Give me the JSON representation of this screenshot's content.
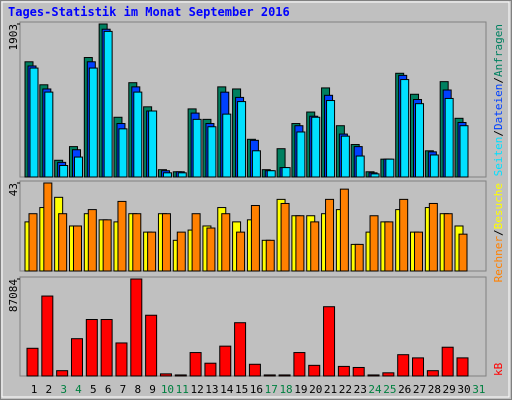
{
  "chart_data": [
    {
      "type": "bar",
      "title": "Tages-Statistik im Monat September 2016",
      "categories": [
        "1",
        "2",
        "3",
        "4",
        "5",
        "6",
        "7",
        "8",
        "9",
        "10",
        "11",
        "12",
        "13",
        "14",
        "15",
        "16",
        "17",
        "18",
        "19",
        "20",
        "21",
        "22",
        "23",
        "24",
        "25",
        "26",
        "27",
        "28",
        "29",
        "30",
        "31"
      ],
      "category_colors": [
        "#000000",
        "#000000",
        "#008040",
        "#008040",
        "#000000",
        "#000000",
        "#000000",
        "#000000",
        "#000000",
        "#008040",
        "#008040",
        "#000000",
        "#000000",
        "#000000",
        "#000000",
        "#000000",
        "#008040",
        "#008040",
        "#000000",
        "#000000",
        "#000000",
        "#000000",
        "#000000",
        "#008040",
        "#008040",
        "#000000",
        "#000000",
        "#000000",
        "#000000",
        "#000000",
        "#008040"
      ],
      "ylim": [
        0,
        1903
      ],
      "yticks": [
        1903
      ],
      "legend_separator": "/",
      "series": [
        {
          "name": "Anfragen",
          "color": "#008060",
          "values": [
            1433,
            1147,
            208,
            378,
            1486,
            1903,
            743,
            1173,
            873,
            91,
            65,
            847,
            717,
            1121,
            1095,
            469,
            91,
            352,
            665,
            808,
            1108,
            638,
            404,
            65,
            222,
            1290,
            1029,
            326,
            1186,
            730,
            null
          ]
        },
        {
          "name": "Dateien",
          "color": "#0040ff",
          "values": [
            1381,
            1095,
            182,
            339,
            1433,
            1838,
            665,
            1121,
            821,
            78,
            65,
            795,
            665,
            1055,
            990,
            456,
            78,
            117,
            638,
            756,
            1016,
            534,
            378,
            52,
            222,
            1264,
            964,
            313,
            1082,
            678,
            null
          ]
        },
        {
          "name": "Seiten",
          "color": "#00e0ff",
          "values": [
            1355,
            1056,
            143,
            248,
            1355,
            1811,
            599,
            1056,
            821,
            52,
            52,
            717,
            625,
            782,
            938,
            326,
            78,
            117,
            560,
            743,
            951,
            508,
            261,
            39,
            222,
            1212,
            912,
            274,
            977,
            638,
            null
          ]
        }
      ]
    },
    {
      "type": "bar",
      "ylim": [
        0,
        43
      ],
      "yticks": [
        43
      ],
      "legend_separator": "/",
      "series": [
        {
          "name": "Besuche",
          "color": "#ffff00",
          "values": [
            24,
            31,
            36,
            22,
            28,
            25,
            24,
            28,
            19,
            28,
            15,
            20,
            22,
            31,
            24,
            25,
            15,
            35,
            27,
            27,
            28,
            30,
            13,
            19,
            24,
            30,
            19,
            31,
            28,
            22,
            null
          ]
        },
        {
          "name": "Rechner",
          "color": "#ff8000",
          "values": [
            28,
            43,
            28,
            22,
            30,
            25,
            34,
            28,
            19,
            28,
            19,
            28,
            21,
            28,
            19,
            32,
            15,
            33,
            27,
            24,
            35,
            40,
            13,
            27,
            24,
            35,
            19,
            33,
            28,
            18,
            null
          ]
        }
      ]
    },
    {
      "type": "bar",
      "ylim": [
        0,
        87084
      ],
      "yticks": [
        87084
      ],
      "series": [
        {
          "name": "kB",
          "color": "#ff0000",
          "values": [
            24880,
            71780,
            4785,
            33500,
            50720,
            50720,
            29670,
            87084,
            54550,
            1914,
            957,
            21050,
            11480,
            26800,
            47850,
            10530,
            957,
            957,
            21050,
            9570,
            62210,
            8613,
            7656,
            957,
            2871,
            19140,
            16270,
            4785,
            25840,
            16270,
            null
          ]
        }
      ]
    }
  ]
}
